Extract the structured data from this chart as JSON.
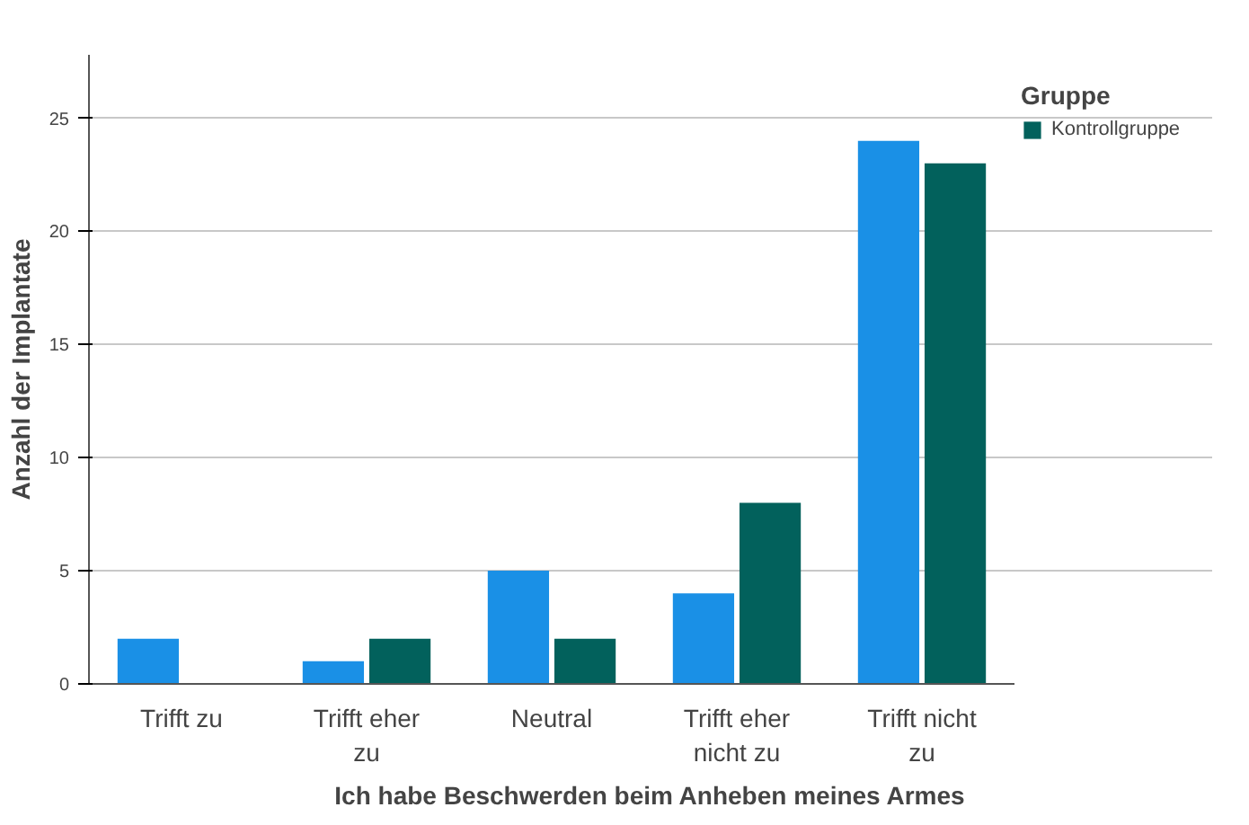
{
  "chart_data": {
    "type": "bar",
    "xlabel": "Ich habe Beschwerden beim Anheben meines Armes",
    "ylabel": "Anzahl der Implantate",
    "legend_title": "Gruppe",
    "categories": [
      "Trifft zu",
      "Trifft eher\nzu",
      "Neutral",
      "Trifft eher\nnicht zu",
      "Trifft nicht\nzu"
    ],
    "series": [
      {
        "color": "#1a90e6",
        "values": [
          2,
          1,
          5,
          4,
          24
        ]
      },
      {
        "name": "Kontrollgruppe",
        "color": "#02615c",
        "values": [
          0,
          2,
          2,
          8,
          23
        ]
      }
    ],
    "ylim": [
      0,
      27.8
    ],
    "yticks": [
      0,
      5,
      10,
      15,
      20,
      25
    ],
    "grid": "y",
    "legend": "top right"
  }
}
